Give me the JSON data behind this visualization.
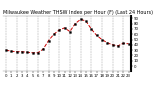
{
  "title": "Milwaukee Weather THSW Index per Hour (F) (Last 24 Hours)",
  "hours": [
    0,
    1,
    2,
    3,
    4,
    5,
    6,
    7,
    8,
    9,
    10,
    11,
    12,
    13,
    14,
    15,
    16,
    17,
    18,
    19,
    20,
    21,
    22,
    23
  ],
  "values": [
    30,
    28,
    27,
    27,
    26,
    25,
    25,
    32,
    48,
    60,
    68,
    72,
    65,
    80,
    88,
    85,
    70,
    58,
    50,
    44,
    40,
    38,
    43,
    42
  ],
  "line_color": "#cc0000",
  "marker_color": "#000000",
  "bg_color": "#ffffff",
  "grid_color": "#888888",
  "ylim": [
    -10,
    95
  ],
  "ytick_vals": [
    0,
    10,
    20,
    30,
    40,
    50,
    60,
    70,
    80,
    90
  ],
  "ytick_labels": [
    "0",
    "10",
    "20",
    "30",
    "40",
    "50",
    "60",
    "70",
    "80",
    "90"
  ],
  "xtick_step": 1,
  "title_fontsize": 3.5,
  "tick_fontsize": 2.8
}
